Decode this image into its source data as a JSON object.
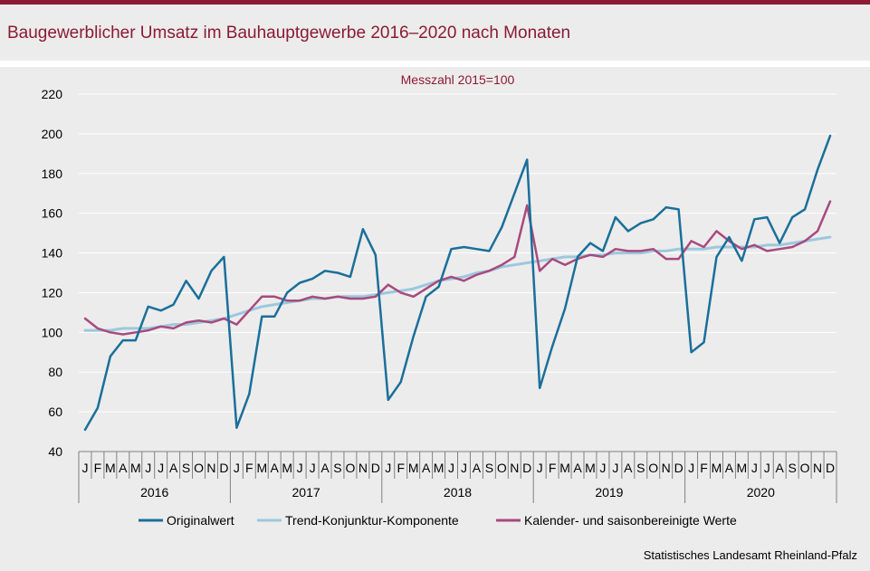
{
  "title": "Baugewerblicher Umsatz im Bauhauptgewerbe 2016–2020 nach Monaten",
  "source": "Statistisches Landesamt Rheinland-Pfalz",
  "colors": {
    "brand": "#8b1a34",
    "background": "#ececec",
    "series": [
      "#1a6f9a",
      "#9cc8de",
      "#a84a7e"
    ]
  },
  "chart_data": {
    "type": "line",
    "subtitle": "Messzahl 2015=100",
    "ylim": [
      40,
      220
    ],
    "yticks": [
      40,
      60,
      80,
      100,
      120,
      140,
      160,
      180,
      200,
      220
    ],
    "grid": true,
    "legend_position": "bottom",
    "month_labels": [
      "J",
      "F",
      "M",
      "A",
      "M",
      "J",
      "J",
      "A",
      "S",
      "O",
      "N",
      "D"
    ],
    "years": [
      "2016",
      "2017",
      "2018",
      "2019",
      "2020"
    ],
    "series": [
      {
        "name": "Originalwert",
        "values": [
          51,
          62,
          88,
          96,
          96,
          113,
          111,
          114,
          126,
          117,
          131,
          138,
          52,
          69,
          108,
          108,
          120,
          125,
          127,
          131,
          130,
          128,
          152,
          139,
          66,
          75,
          98,
          118,
          123,
          142,
          143,
          142,
          141,
          153,
          170,
          187,
          72,
          93,
          112,
          138,
          145,
          141,
          158,
          151,
          155,
          157,
          163,
          162,
          90,
          95,
          138,
          148,
          136,
          157,
          158,
          145,
          158,
          162,
          182,
          199
        ]
      },
      {
        "name": "Trend-Konjunktur-Komponente",
        "values": [
          101,
          101,
          101,
          102,
          102,
          102,
          103,
          104,
          104,
          105,
          106,
          107,
          109,
          111,
          113,
          114,
          115,
          116,
          117,
          117,
          118,
          118,
          118,
          119,
          120,
          121,
          122,
          124,
          126,
          127,
          128,
          130,
          131,
          133,
          134,
          135,
          136,
          137,
          138,
          138,
          139,
          139,
          140,
          140,
          140,
          141,
          141,
          142,
          142,
          142,
          143,
          143,
          143,
          143,
          144,
          144,
          145,
          146,
          147,
          148
        ]
      },
      {
        "name": "Kalender- und saisonbereinigte Werte",
        "values": [
          107,
          102,
          100,
          99,
          100,
          101,
          103,
          102,
          105,
          106,
          105,
          107,
          104,
          111,
          118,
          118,
          116,
          116,
          118,
          117,
          118,
          117,
          117,
          118,
          124,
          120,
          118,
          122,
          126,
          128,
          126,
          129,
          131,
          134,
          138,
          164,
          131,
          137,
          134,
          137,
          139,
          138,
          142,
          141,
          141,
          142,
          137,
          137,
          146,
          143,
          151,
          146,
          142,
          144,
          141,
          142,
          143,
          146,
          151,
          166
        ]
      }
    ]
  }
}
